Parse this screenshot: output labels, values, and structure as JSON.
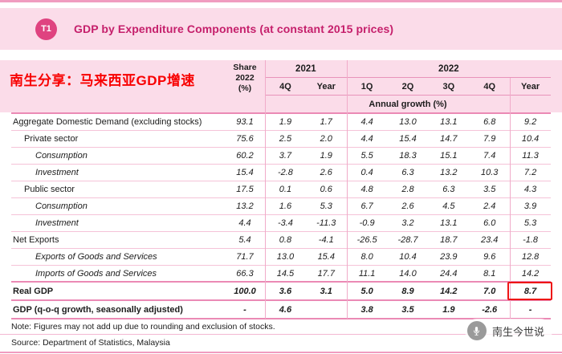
{
  "page": {
    "badge": "T1",
    "title": "GDP by Expenditure Components (at constant 2015 prices)",
    "overlay_text": "南生分享：马来西亚GDP增速",
    "note": "Note: Figures may not add up due to rounding and exclusion of stocks.",
    "source": "Source: Department of Statistics, Malaysia",
    "watermark": "南生今世说"
  },
  "colors": {
    "accent": "#c51f6b",
    "band": "#fbdce9",
    "rule_light": "#f5c3d8",
    "rule_dark": "#eb8ab5",
    "overlay_red": "#f80000",
    "highlight_red": "#ee1515"
  },
  "table": {
    "share_lines": [
      "Share",
      "2022",
      "(%)"
    ],
    "groups": [
      {
        "label": "2021",
        "cols": 2
      },
      {
        "label": "2022",
        "cols": 5
      }
    ],
    "quarters": [
      "4Q",
      "Year",
      "1Q",
      "2Q",
      "3Q",
      "4Q",
      "Year"
    ],
    "subheader": "Annual growth (%)",
    "rows": [
      {
        "label": "Aggregate Domestic Demand (excluding stocks)",
        "level": 0,
        "italic": false,
        "bold": false,
        "values": [
          "93.1",
          "1.9",
          "1.7",
          "4.4",
          "13.0",
          "13.1",
          "6.8",
          "9.2"
        ]
      },
      {
        "label": "Private sector",
        "level": 1,
        "italic": false,
        "bold": false,
        "values": [
          "75.6",
          "2.5",
          "2.0",
          "4.4",
          "15.4",
          "14.7",
          "7.9",
          "10.4"
        ]
      },
      {
        "label": "Consumption",
        "level": 2,
        "italic": true,
        "bold": false,
        "values": [
          "60.2",
          "3.7",
          "1.9",
          "5.5",
          "18.3",
          "15.1",
          "7.4",
          "11.3"
        ]
      },
      {
        "label": "Investment",
        "level": 2,
        "italic": true,
        "bold": false,
        "values": [
          "15.4",
          "-2.8",
          "2.6",
          "0.4",
          "6.3",
          "13.2",
          "10.3",
          "7.2"
        ]
      },
      {
        "label": "Public sector",
        "level": 1,
        "italic": false,
        "bold": false,
        "values": [
          "17.5",
          "0.1",
          "0.6",
          "4.8",
          "2.8",
          "6.3",
          "3.5",
          "4.3"
        ]
      },
      {
        "label": "Consumption",
        "level": 2,
        "italic": true,
        "bold": false,
        "values": [
          "13.2",
          "1.6",
          "5.3",
          "6.7",
          "2.6",
          "4.5",
          "2.4",
          "3.9"
        ]
      },
      {
        "label": "Investment",
        "level": 2,
        "italic": true,
        "bold": false,
        "values": [
          "4.4",
          "-3.4",
          "-11.3",
          "-0.9",
          "3.2",
          "13.1",
          "6.0",
          "5.3"
        ]
      },
      {
        "label": "Net Exports",
        "level": 0,
        "italic": false,
        "bold": false,
        "values": [
          "5.4",
          "0.8",
          "-4.1",
          "-26.5",
          "-28.7",
          "18.7",
          "23.4",
          "-1.8"
        ]
      },
      {
        "label": "Exports of Goods and Services",
        "level": 2,
        "italic": true,
        "bold": false,
        "values": [
          "71.7",
          "13.0",
          "15.4",
          "8.0",
          "10.4",
          "23.9",
          "9.6",
          "12.8"
        ]
      },
      {
        "label": "Imports of Goods and Services",
        "level": 2,
        "italic": true,
        "bold": false,
        "values": [
          "66.3",
          "14.5",
          "17.7",
          "11.1",
          "14.0",
          "24.4",
          "8.1",
          "14.2"
        ]
      },
      {
        "label": "Real GDP",
        "level": 0,
        "italic": false,
        "bold": true,
        "values": [
          "100.0",
          "3.6",
          "3.1",
          "5.0",
          "8.9",
          "14.2",
          "7.0",
          "8.7"
        ],
        "highlight_col": 7
      },
      {
        "label": "GDP (q-o-q growth, seasonally adjusted)",
        "level": 0,
        "italic": false,
        "bold": true,
        "values": [
          "-",
          "4.6",
          "",
          "3.8",
          "3.5",
          "1.9",
          "-2.6",
          "-"
        ]
      }
    ]
  },
  "chart_data": {
    "type": "table",
    "title": "GDP by Expenditure Components (at constant 2015 prices)",
    "unit": "Annual growth (%)",
    "columns": [
      "Share 2022 (%)",
      "2021 4Q",
      "2021 Year",
      "2022 1Q",
      "2022 2Q",
      "2022 3Q",
      "2022 4Q",
      "2022 Year"
    ],
    "rows": [
      {
        "label": "Aggregate Domestic Demand (excluding stocks)",
        "values": [
          93.1,
          1.9,
          1.7,
          4.4,
          13.0,
          13.1,
          6.8,
          9.2
        ]
      },
      {
        "label": "Private sector",
        "values": [
          75.6,
          2.5,
          2.0,
          4.4,
          15.4,
          14.7,
          7.9,
          10.4
        ]
      },
      {
        "label": "Consumption (private)",
        "values": [
          60.2,
          3.7,
          1.9,
          5.5,
          18.3,
          15.1,
          7.4,
          11.3
        ]
      },
      {
        "label": "Investment (private)",
        "values": [
          15.4,
          -2.8,
          2.6,
          0.4,
          6.3,
          13.2,
          10.3,
          7.2
        ]
      },
      {
        "label": "Public sector",
        "values": [
          17.5,
          0.1,
          0.6,
          4.8,
          2.8,
          6.3,
          3.5,
          4.3
        ]
      },
      {
        "label": "Consumption (public)",
        "values": [
          13.2,
          1.6,
          5.3,
          6.7,
          2.6,
          4.5,
          2.4,
          3.9
        ]
      },
      {
        "label": "Investment (public)",
        "values": [
          4.4,
          -3.4,
          -11.3,
          -0.9,
          3.2,
          13.1,
          6.0,
          5.3
        ]
      },
      {
        "label": "Net Exports",
        "values": [
          5.4,
          0.8,
          -4.1,
          -26.5,
          -28.7,
          18.7,
          23.4,
          -1.8
        ]
      },
      {
        "label": "Exports of Goods and Services",
        "values": [
          71.7,
          13.0,
          15.4,
          8.0,
          10.4,
          23.9,
          9.6,
          12.8
        ]
      },
      {
        "label": "Imports of Goods and Services",
        "values": [
          66.3,
          14.5,
          17.7,
          11.1,
          14.0,
          24.4,
          8.1,
          14.2
        ]
      },
      {
        "label": "Real GDP",
        "values": [
          100.0,
          3.6,
          3.1,
          5.0,
          8.9,
          14.2,
          7.0,
          8.7
        ]
      },
      {
        "label": "GDP (q-o-q growth, seasonally adjusted)",
        "values": [
          null,
          4.6,
          null,
          3.8,
          3.5,
          1.9,
          -2.6,
          null
        ]
      }
    ],
    "highlight": {
      "row": "Real GDP",
      "column": "2022 Year",
      "value": 8.7
    },
    "note": "Note: Figures may not add up due to rounding and exclusion of stocks.",
    "source": "Source: Department of Statistics, Malaysia"
  }
}
